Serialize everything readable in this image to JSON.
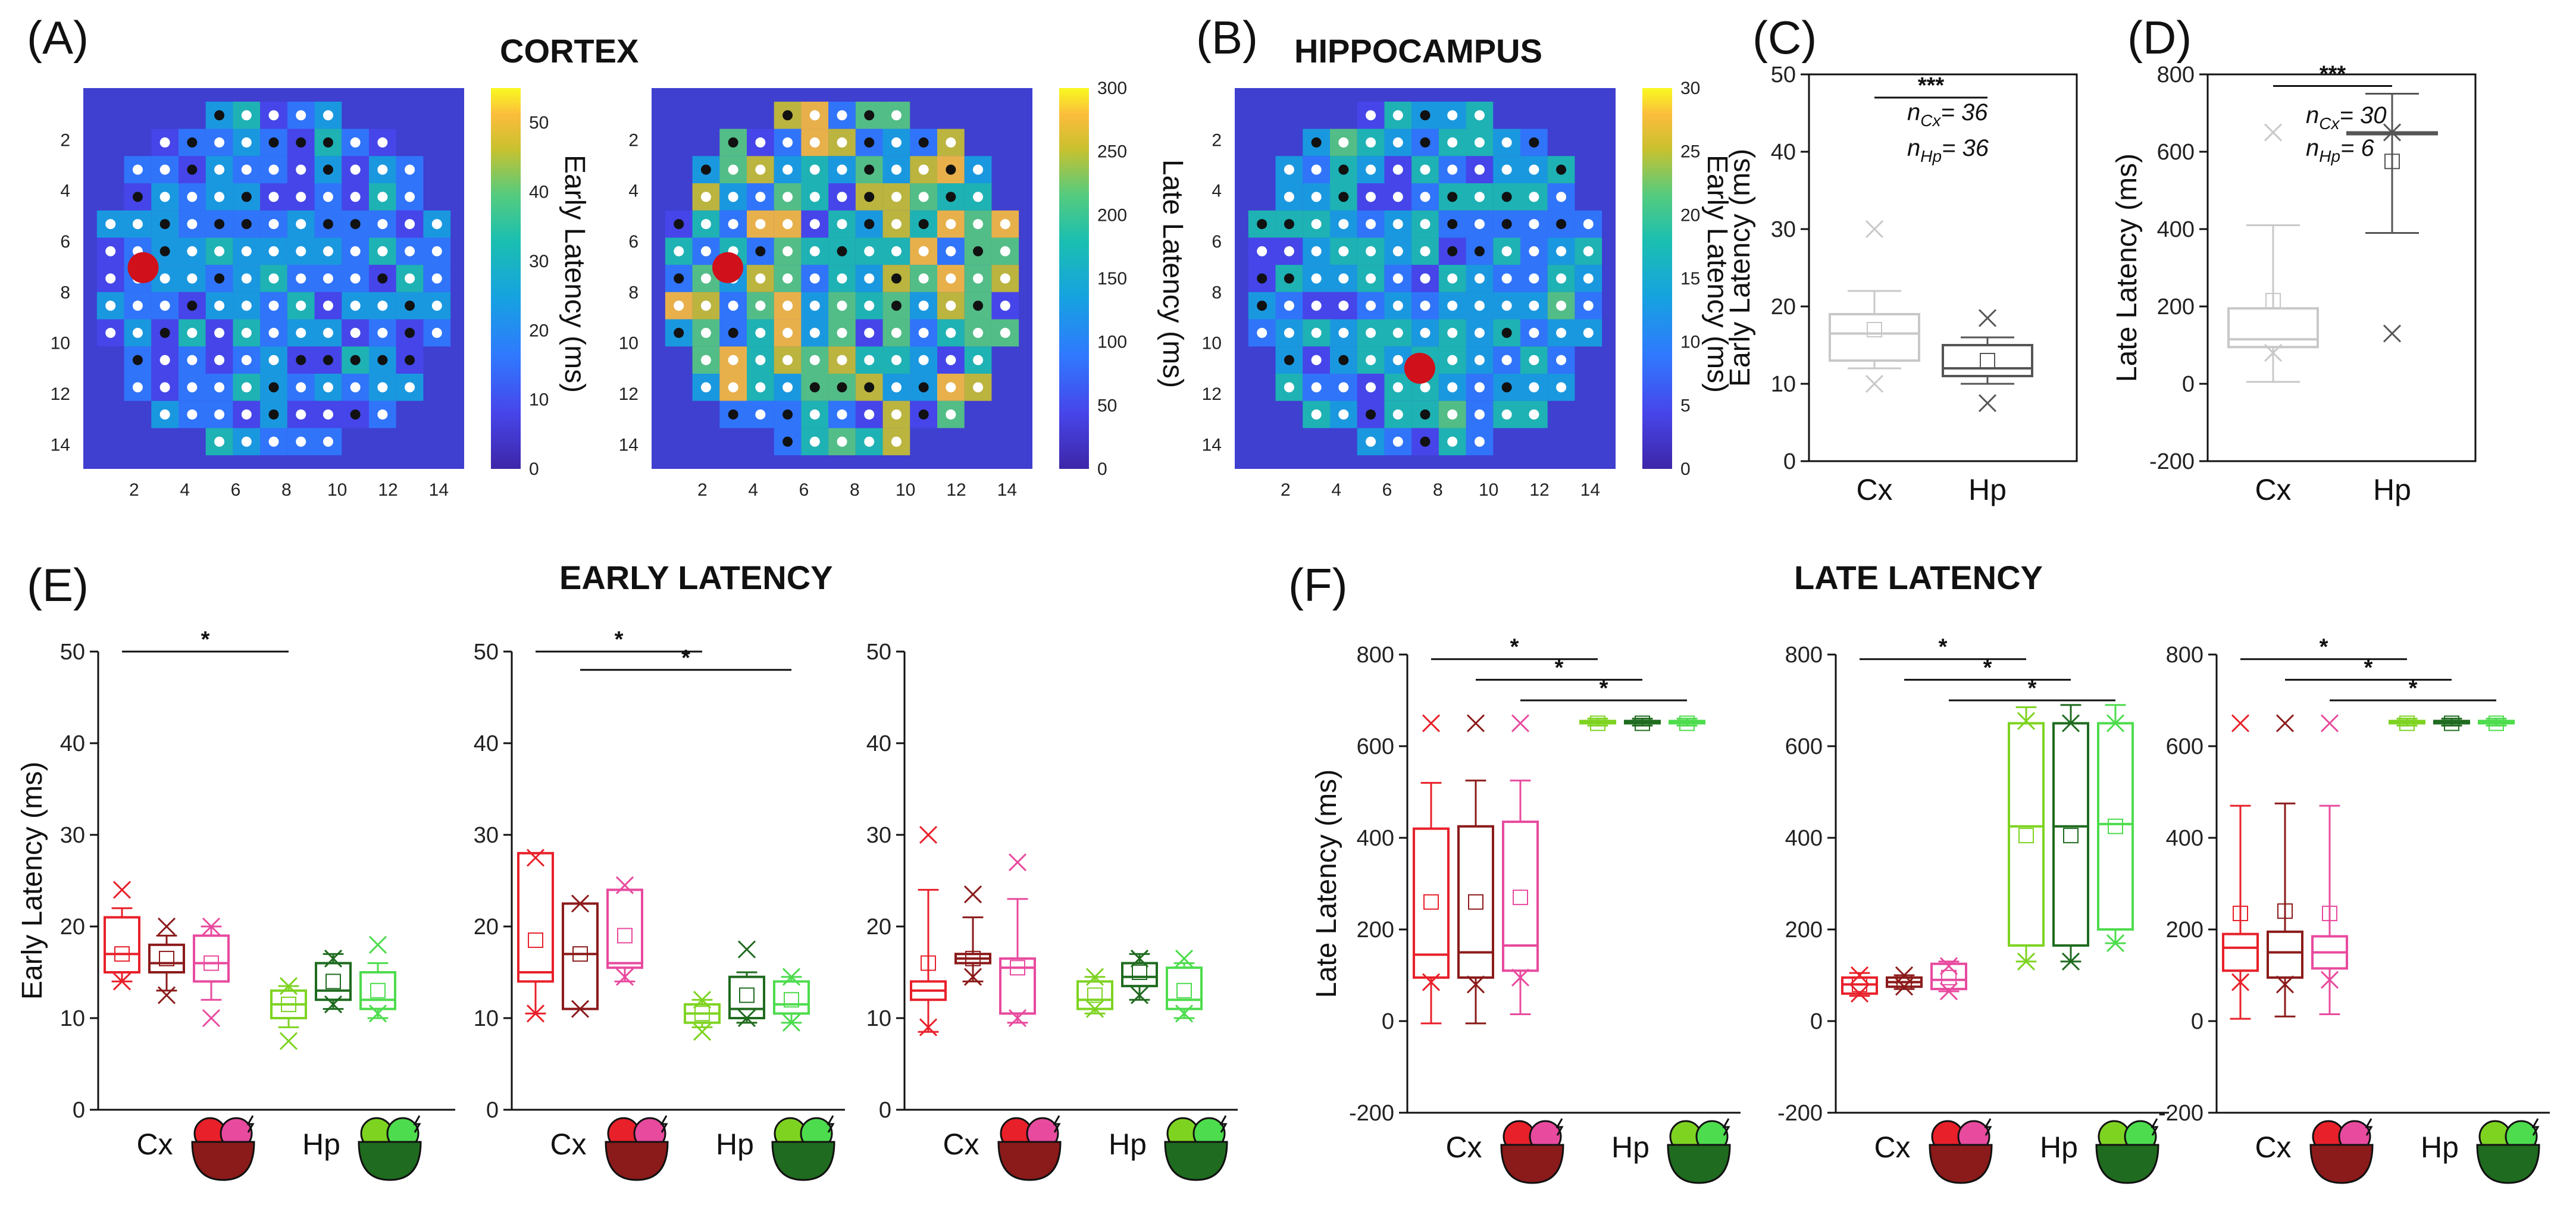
{
  "panels": {
    "A": {
      "letter": "(A)",
      "title": "CORTEX",
      "maps": [
        {
          "colorbar_label": "Early Latency  (ms)",
          "cbar_ticks": [
            "0",
            "10",
            "20",
            "30",
            "40",
            "50"
          ],
          "cbar_max": 55
        },
        {
          "colorbar_label": "Late Latency (ms)",
          "cbar_ticks": [
            "0",
            "50",
            "100",
            "150",
            "200",
            "250",
            "300"
          ],
          "cbar_max": 300
        }
      ],
      "y_ticks": [
        "2",
        "4",
        "6",
        "8",
        "10",
        "12",
        "14"
      ],
      "x_ticks": [
        "2",
        "4",
        "6",
        "8",
        "10",
        "12",
        "14"
      ]
    },
    "B": {
      "letter": "(B)",
      "title": "HIPPOCAMPUS",
      "maps": [
        {
          "colorbar_label": "Early Latency (ms)",
          "cbar_ticks": [
            "0",
            "5",
            "10",
            "15",
            "20",
            "25",
            "30"
          ],
          "cbar_max": 30
        }
      ],
      "y_ticks": [
        "2",
        "4",
        "6",
        "8",
        "10",
        "12",
        "14"
      ],
      "x_ticks": [
        "2",
        "4",
        "6",
        "8",
        "10",
        "12",
        "14"
      ]
    },
    "C": {
      "letter": "(C)",
      "n_cx": "n",
      "n_cx_sub": "Cx",
      "n_cx_val": "= 36",
      "n_hp": "n",
      "n_hp_sub": "Hp",
      "n_hp_val": "= 36",
      "sig": "***"
    },
    "D": {
      "letter": "(D)",
      "n_cx": "n",
      "n_cx_sub": "Cx",
      "n_cx_val": "= 30",
      "n_hp": "n",
      "n_hp_sub": "Hp",
      "n_hp_val": "= 6",
      "sig": "***"
    },
    "E": {
      "letter": "(E)",
      "title": "EARLY LATENCY"
    },
    "F": {
      "letter": "(F)",
      "title": "LATE LATENCY"
    }
  },
  "labels": {
    "cx": "Cx",
    "hp": "Hp",
    "star": "*"
  },
  "chart_data": [
    {
      "id": "C",
      "type": "box",
      "ylabel": "Early Latency (ms)",
      "ylim": [
        0,
        50
      ],
      "yticks": [
        0,
        10,
        20,
        30,
        40,
        50
      ],
      "yticklabels": [
        "0",
        "10",
        "20",
        "30",
        "40",
        "50"
      ],
      "categories": [
        "Cx",
        "Hp"
      ],
      "boxes": [
        {
          "cat": "Cx",
          "color": "#c8c8c8",
          "q1": 13,
          "median": 16.5,
          "q3": 19,
          "wlo": 12,
          "whi": 22,
          "mean": 17,
          "outliers": [
            30,
            10
          ]
        },
        {
          "cat": "Hp",
          "color": "#555555",
          "q1": 11,
          "median": 12,
          "q3": 15,
          "wlo": 10,
          "whi": 16,
          "mean": 13,
          "outliers": [
            18.5,
            7.5
          ]
        }
      ],
      "sig": [
        {
          "from": 0,
          "to": 1,
          "y": 47,
          "label": "***"
        }
      ]
    },
    {
      "id": "D",
      "type": "box",
      "ylabel": "Late Latency (ms)",
      "ylim": [
        -200,
        800
      ],
      "yticks": [
        -200,
        0,
        200,
        400,
        600,
        800
      ],
      "yticklabels": [
        "-200",
        "0",
        "200",
        "400",
        "600",
        "800"
      ],
      "categories": [
        "Cx",
        "Hp"
      ],
      "boxes": [
        {
          "cat": "Cx",
          "color": "#c8c8c8",
          "q1": 95,
          "median": 115,
          "q3": 195,
          "wlo": 5,
          "whi": 410,
          "mean": 215,
          "outliers": [
            650,
            80
          ]
        },
        {
          "cat": "Hp",
          "color": "#555555",
          "q1": 650,
          "median": 650,
          "q3": 650,
          "wlo": 390,
          "whi": 750,
          "mean": 575,
          "outliers": [
            650,
            130
          ]
        }
      ],
      "sig": [
        {
          "from": 0,
          "to": 1,
          "y": 770,
          "label": "***"
        }
      ]
    },
    {
      "id": "E1",
      "type": "box",
      "ylabel": "Early Latency (ms)",
      "ylim": [
        0,
        50
      ],
      "yticks": [
        0,
        10,
        20,
        30,
        40,
        50
      ],
      "yticklabels": [
        "0",
        "10",
        "20",
        "30",
        "40",
        "50"
      ],
      "boxes": [
        {
          "color": "#e8202a",
          "q1": 15,
          "median": 17,
          "q3": 21,
          "wlo": 14,
          "whi": 22,
          "mean": 17,
          "outliers": [
            24,
            14
          ]
        },
        {
          "color": "#8b1a1a",
          "q1": 15,
          "median": 16,
          "q3": 18,
          "wlo": 13,
          "whi": 19,
          "mean": 16.5,
          "outliers": [
            20,
            12.5
          ]
        },
        {
          "color": "#e84a9e",
          "q1": 14,
          "median": 16,
          "q3": 19,
          "wlo": 12,
          "whi": 20,
          "mean": 16,
          "outliers": [
            20,
            10
          ]
        },
        {
          "color": "#7ed321",
          "q1": 10,
          "median": 11.5,
          "q3": 13,
          "wlo": 9,
          "whi": 13.5,
          "mean": 11.5,
          "outliers": [
            13.5,
            7.5
          ]
        },
        {
          "color": "#1f6b1f",
          "q1": 12,
          "median": 13,
          "q3": 16,
          "wlo": 11,
          "whi": 17,
          "mean": 14,
          "outliers": [
            16.5,
            11.5
          ]
        },
        {
          "color": "#4ddc4d",
          "q1": 11,
          "median": 12,
          "q3": 15,
          "wlo": 10,
          "whi": 16,
          "mean": 13,
          "outliers": [
            18,
            10.5
          ]
        }
      ],
      "sig": [
        {
          "from": 0,
          "to": 3,
          "y": 50,
          "label": "*"
        }
      ]
    },
    {
      "id": "E2",
      "type": "box",
      "ylabel": "",
      "ylim": [
        0,
        50
      ],
      "yticks": [
        0,
        10,
        20,
        30,
        40,
        50
      ],
      "yticklabels": [
        "0",
        "10",
        "20",
        "30",
        "40",
        "50"
      ],
      "boxes": [
        {
          "color": "#e8202a",
          "q1": 14,
          "median": 15,
          "q3": 28,
          "wlo": 10.5,
          "whi": 28,
          "mean": 18.5,
          "outliers": [
            27.5,
            10.5
          ]
        },
        {
          "color": "#8b1a1a",
          "q1": 11,
          "median": 17,
          "q3": 22.5,
          "wlo": 11,
          "whi": 22.5,
          "mean": 17,
          "outliers": [
            22.5,
            11
          ]
        },
        {
          "color": "#e84a9e",
          "q1": 15.5,
          "median": 16,
          "q3": 24,
          "wlo": 14,
          "whi": 24,
          "mean": 19,
          "outliers": [
            24.5,
            14.5
          ]
        },
        {
          "color": "#7ed321",
          "q1": 9.5,
          "median": 10.5,
          "q3": 11.5,
          "wlo": 9,
          "whi": 12,
          "mean": 10.5,
          "outliers": [
            12,
            8.5
          ]
        },
        {
          "color": "#1f6b1f",
          "q1": 10,
          "median": 11,
          "q3": 14.5,
          "wlo": 9.5,
          "whi": 15,
          "mean": 12.5,
          "outliers": [
            17.5,
            10
          ]
        },
        {
          "color": "#4ddc4d",
          "q1": 10.5,
          "median": 11.5,
          "q3": 14,
          "wlo": 9.5,
          "whi": 14.5,
          "mean": 12,
          "outliers": [
            14.5,
            9.5
          ]
        }
      ],
      "sig": [
        {
          "from": 0,
          "to": 3,
          "y": 50,
          "label": "*"
        },
        {
          "from": 1,
          "to": 5,
          "y": 48,
          "label": "*"
        }
      ]
    },
    {
      "id": "E3",
      "type": "box",
      "ylabel": "",
      "ylim": [
        0,
        50
      ],
      "yticks": [
        0,
        10,
        20,
        30,
        40,
        50
      ],
      "yticklabels": [
        "0",
        "10",
        "20",
        "30",
        "40",
        "50"
      ],
      "boxes": [
        {
          "color": "#e8202a",
          "q1": 12,
          "median": 13,
          "q3": 14,
          "wlo": 8.5,
          "whi": 24,
          "mean": 16,
          "outliers": [
            30,
            9
          ]
        },
        {
          "color": "#8b1a1a",
          "q1": 16,
          "median": 16.5,
          "q3": 17,
          "wlo": 14,
          "whi": 21,
          "mean": 16.5,
          "outliers": [
            23.5,
            14.5
          ]
        },
        {
          "color": "#e84a9e",
          "q1": 10.5,
          "median": 15.5,
          "q3": 16.5,
          "wlo": 9.5,
          "whi": 23,
          "mean": 15.5,
          "outliers": [
            27,
            10
          ]
        },
        {
          "color": "#7ed321",
          "q1": 11,
          "median": 12,
          "q3": 14,
          "wlo": 10.5,
          "whi": 14.5,
          "mean": 12.5,
          "outliers": [
            14.5,
            11
          ]
        },
        {
          "color": "#1f6b1f",
          "q1": 13.5,
          "median": 14.5,
          "q3": 16,
          "wlo": 12,
          "whi": 17,
          "mean": 15,
          "outliers": [
            16.5,
            12.5
          ]
        },
        {
          "color": "#4ddc4d",
          "q1": 11,
          "median": 12,
          "q3": 15.5,
          "wlo": 10,
          "whi": 16,
          "mean": 13,
          "outliers": [
            16.5,
            10.5
          ]
        }
      ],
      "sig": []
    },
    {
      "id": "F1",
      "type": "box",
      "ylabel": "Late Latency (ms)",
      "ylim": [
        -200,
        800
      ],
      "yticks": [
        -200,
        0,
        200,
        400,
        600,
        800
      ],
      "yticklabels": [
        "-200",
        "0",
        "200",
        "400",
        "600",
        "800"
      ],
      "boxes": [
        {
          "color": "#e8202a",
          "q1": 95,
          "median": 145,
          "q3": 420,
          "wlo": -5,
          "whi": 520,
          "mean": 260,
          "outliers": [
            650,
            85
          ]
        },
        {
          "color": "#8b1a1a",
          "q1": 95,
          "median": 150,
          "q3": 425,
          "wlo": -5,
          "whi": 525,
          "mean": 260,
          "outliers": [
            650,
            80
          ]
        },
        {
          "color": "#e84a9e",
          "q1": 110,
          "median": 165,
          "q3": 435,
          "wlo": 15,
          "whi": 525,
          "mean": 270,
          "outliers": [
            650,
            95
          ]
        },
        {
          "color": "#7ed321",
          "q1": 650,
          "median": 650,
          "q3": 655,
          "wlo": 645,
          "whi": 660,
          "mean": 650,
          "outliers": []
        },
        {
          "color": "#1f6b1f",
          "q1": 650,
          "median": 650,
          "q3": 655,
          "wlo": 645,
          "whi": 660,
          "mean": 650,
          "outliers": []
        },
        {
          "color": "#4ddc4d",
          "q1": 650,
          "median": 650,
          "q3": 655,
          "wlo": 645,
          "whi": 660,
          "mean": 650,
          "outliers": []
        }
      ],
      "sig": [
        {
          "from": 0,
          "to": 3,
          "y": 790,
          "label": "*"
        },
        {
          "from": 1,
          "to": 4,
          "y": 745,
          "label": "*"
        },
        {
          "from": 2,
          "to": 5,
          "y": 700,
          "label": "*"
        }
      ]
    },
    {
      "id": "F2",
      "type": "box",
      "ylabel": "",
      "ylim": [
        -200,
        800
      ],
      "yticks": [
        -200,
        0,
        200,
        400,
        600,
        800
      ],
      "yticklabels": [
        "-200",
        "0",
        "200",
        "400",
        "600",
        "800"
      ],
      "boxes": [
        {
          "color": "#e8202a",
          "q1": 60,
          "median": 80,
          "q3": 95,
          "wlo": 55,
          "whi": 105,
          "mean": 80,
          "outliers": [
            100,
            60
          ]
        },
        {
          "color": "#8b1a1a",
          "q1": 75,
          "median": 85,
          "q3": 95,
          "wlo": 70,
          "whi": 100,
          "mean": 85,
          "outliers": [
            100,
            75
          ]
        },
        {
          "color": "#e84a9e",
          "q1": 70,
          "median": 90,
          "q3": 125,
          "wlo": 65,
          "whi": 130,
          "mean": 95,
          "outliers": [
            120,
            65
          ]
        },
        {
          "color": "#7ed321",
          "q1": 165,
          "median": 425,
          "q3": 650,
          "wlo": 130,
          "whi": 685,
          "mean": 405,
          "outliers": [
            655,
            130
          ]
        },
        {
          "color": "#1f6b1f",
          "q1": 165,
          "median": 425,
          "q3": 650,
          "wlo": 130,
          "whi": 690,
          "mean": 405,
          "outliers": [
            650,
            130
          ]
        },
        {
          "color": "#4ddc4d",
          "q1": 200,
          "median": 430,
          "q3": 650,
          "wlo": 170,
          "whi": 690,
          "mean": 425,
          "outliers": [
            650,
            170
          ]
        }
      ],
      "sig": [
        {
          "from": 0,
          "to": 3,
          "y": 790,
          "label": "*"
        },
        {
          "from": 1,
          "to": 4,
          "y": 745,
          "label": "*"
        },
        {
          "from": 2,
          "to": 5,
          "y": 700,
          "label": "*"
        }
      ]
    },
    {
      "id": "F3",
      "type": "box",
      "ylabel": "",
      "ylim": [
        -200,
        800
      ],
      "yticks": [
        -200,
        0,
        200,
        400,
        600,
        800
      ],
      "yticklabels": [
        "-200",
        "0",
        "200",
        "400",
        "600",
        "800"
      ],
      "boxes": [
        {
          "color": "#e8202a",
          "q1": 110,
          "median": 160,
          "q3": 190,
          "wlo": 5,
          "whi": 470,
          "mean": 235,
          "outliers": [
            650,
            85
          ]
        },
        {
          "color": "#8b1a1a",
          "q1": 95,
          "median": 150,
          "q3": 195,
          "wlo": 10,
          "whi": 475,
          "mean": 240,
          "outliers": [
            650,
            80
          ]
        },
        {
          "color": "#e84a9e",
          "q1": 115,
          "median": 150,
          "q3": 185,
          "wlo": 15,
          "whi": 470,
          "mean": 235,
          "outliers": [
            650,
            90
          ]
        },
        {
          "color": "#7ed321",
          "q1": 650,
          "median": 650,
          "q3": 655,
          "wlo": 645,
          "whi": 660,
          "mean": 650,
          "outliers": []
        },
        {
          "color": "#1f6b1f",
          "q1": 650,
          "median": 650,
          "q3": 655,
          "wlo": 645,
          "whi": 660,
          "mean": 650,
          "outliers": []
        },
        {
          "color": "#4ddc4d",
          "q1": 650,
          "median": 650,
          "q3": 655,
          "wlo": 645,
          "whi": 660,
          "mean": 650,
          "outliers": []
        }
      ],
      "sig": [
        {
          "from": 0,
          "to": 3,
          "y": 790,
          "label": "*"
        },
        {
          "from": 1,
          "to": 4,
          "y": 745,
          "label": "*"
        },
        {
          "from": 2,
          "to": 5,
          "y": 700,
          "label": "*"
        }
      ]
    }
  ]
}
